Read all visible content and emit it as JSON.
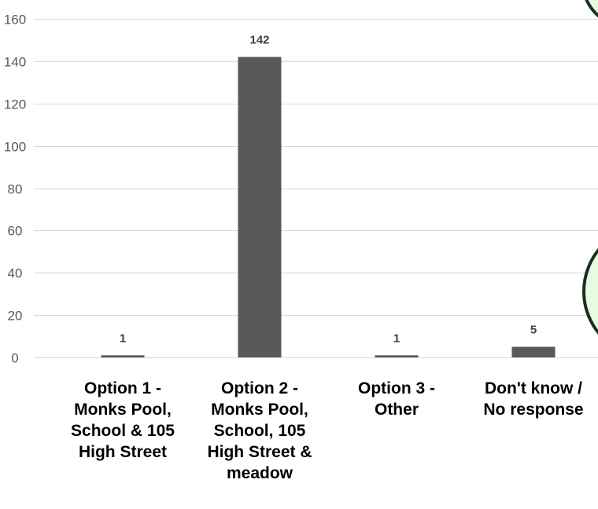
{
  "chart_data": {
    "type": "bar",
    "categories": [
      [
        "Option 1 -",
        "Monks Pool,",
        "School & 105",
        "High Street"
      ],
      [
        "Option 2 -",
        "Monks Pool,",
        "School, 105",
        "High Street &",
        "meadow"
      ],
      [
        "Option 3 -",
        "Other"
      ],
      [
        "Don't know /",
        "No response"
      ]
    ],
    "values": [
      1,
      142,
      1,
      5
    ],
    "ylim": [
      0,
      160
    ],
    "yticks": [
      0,
      20,
      40,
      60,
      80,
      100,
      120,
      140,
      160
    ],
    "grid": true,
    "bar_color": "#595959",
    "grid_color": "#d9d9d9"
  },
  "decor": {
    "border_color": "#1a2e22",
    "fill_color": "#e6fbe0"
  }
}
